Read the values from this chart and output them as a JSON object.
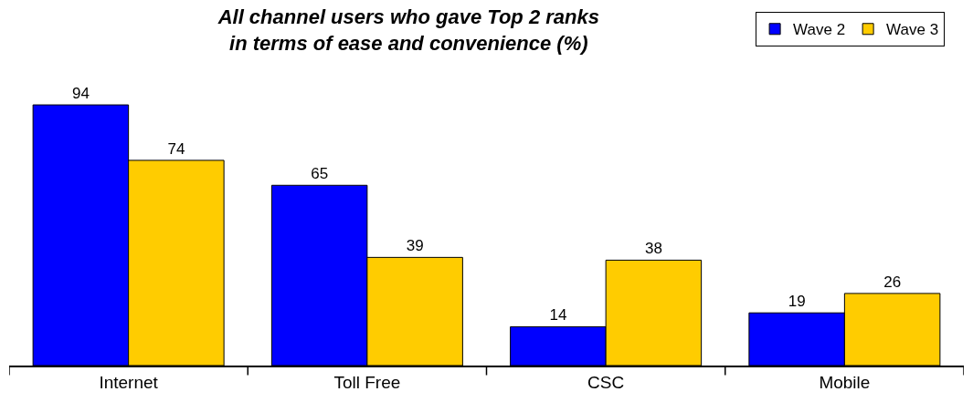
{
  "chart_data": {
    "type": "bar",
    "title": "All channel users who gave Top 2 ranks\nin terms of ease and convenience (%)",
    "categories": [
      "Internet",
      "Toll Free",
      "CSC",
      "Mobile"
    ],
    "series": [
      {
        "name": "Wave 2",
        "color": "#0000ff",
        "values": [
          94,
          65,
          14,
          19
        ]
      },
      {
        "name": "Wave 3",
        "color": "#ffcc00",
        "values": [
          74,
          39,
          38,
          26
        ]
      }
    ],
    "data_labels": true,
    "legend": "top right",
    "tick_labels": "x"
  }
}
